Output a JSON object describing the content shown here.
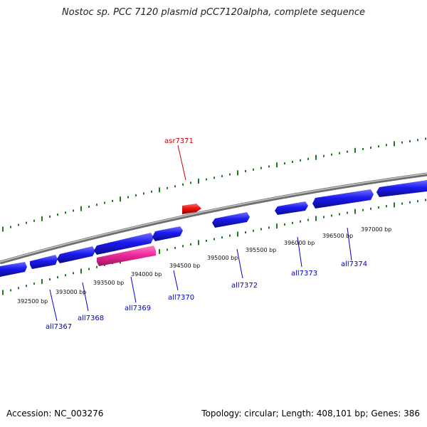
{
  "title": "Nostoc sp. PCC 7120 plasmid pCC7120alpha, complete sequence",
  "footer": {
    "accession": "Accession: NC_003276",
    "summary": "Topology: circular; Length: 408,101 bp; Genes: 386"
  },
  "colors": {
    "backbone": "#8c8c8c",
    "tick": "#1e7a1e",
    "gene": "#1a1aee",
    "gene_highlight": "#ee2a9a",
    "gene_special": "#ee1111",
    "label": "#0000cc",
    "label_special": "#cc0000"
  },
  "position_ticks": [
    "392500 bp",
    "393000 bp",
    "393500 bp",
    "394000 bp",
    "394500 bp",
    "395000 bp",
    "395500 bp",
    "396000 bp",
    "396500 bp",
    "397000 bp"
  ],
  "gene_labels": [
    {
      "name": "all7367",
      "color": "blue"
    },
    {
      "name": "all7368",
      "color": "blue"
    },
    {
      "name": "all7369",
      "color": "blue"
    },
    {
      "name": "all7370",
      "color": "blue"
    },
    {
      "name": "all7372",
      "color": "blue"
    },
    {
      "name": "all7373",
      "color": "blue"
    },
    {
      "name": "all7374",
      "color": "blue"
    },
    {
      "name": "asr7371",
      "color": "red"
    }
  ]
}
